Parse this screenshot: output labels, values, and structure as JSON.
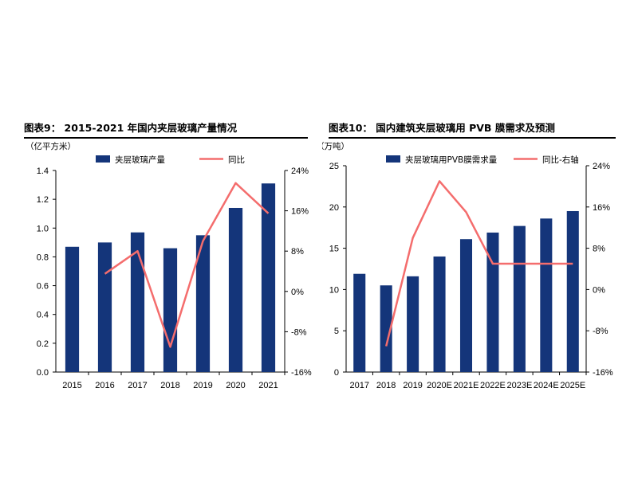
{
  "panels": [
    {
      "title": "图表9： 2015-2021 年国内夹层玻璃产量情况",
      "chart_data": {
        "type": "bar",
        "categories": [
          "2015",
          "2016",
          "2017",
          "2018",
          "2019",
          "2020",
          "2021"
        ],
        "ylabel": "（亿平方米）",
        "ylim": [
          0,
          1.4
        ],
        "yticks": [
          "0.0",
          "0.2",
          "0.4",
          "0.6",
          "0.8",
          "1.0",
          "1.2",
          "1.4"
        ],
        "y2lim": [
          -16,
          24
        ],
        "y2ticks": [
          "-16%",
          "-8%",
          "0%",
          "8%",
          "16%",
          "24%"
        ],
        "grid": false,
        "legend_position": "top",
        "series": [
          {
            "name": "夹层玻璃产量",
            "type": "bar",
            "axis": "left",
            "color": "#14357a",
            "values": [
              0.87,
              0.9,
              0.97,
              0.86,
              0.95,
              1.14,
              1.31
            ]
          },
          {
            "name": "同比",
            "type": "line",
            "axis": "right",
            "color": "#f46d6d",
            "values": [
              null,
              3.5,
              8.0,
              -11.0,
              10.0,
              21.5,
              15.5
            ]
          }
        ]
      }
    },
    {
      "title": "图表10： 国内建筑夹层玻璃用 PVB 膜需求及预测",
      "chart_data": {
        "type": "bar",
        "categories": [
          "2017",
          "2018",
          "2019",
          "2020E",
          "2021E",
          "2022E",
          "2023E",
          "2024E",
          "2025E"
        ],
        "ylabel": "（万吨）",
        "ylim": [
          0,
          25
        ],
        "yticks": [
          "0",
          "5",
          "10",
          "15",
          "20",
          "25"
        ],
        "y2lim": [
          -16,
          24
        ],
        "y2ticks": [
          "-16%",
          "-8%",
          "0%",
          "8%",
          "16%",
          "24%"
        ],
        "grid": false,
        "legend_position": "top",
        "series": [
          {
            "name": "夹层玻璃用PVB膜需求量",
            "type": "bar",
            "axis": "left",
            "color": "#14357a",
            "values": [
              11.9,
              10.5,
              11.6,
              14.0,
              16.1,
              16.9,
              17.7,
              18.6,
              19.5
            ]
          },
          {
            "name": "同比-右轴",
            "type": "line",
            "axis": "right",
            "color": "#f46d6d",
            "values": [
              null,
              -11.0,
              10.0,
              21.0,
              15.0,
              5.0,
              5.0,
              5.0,
              5.0
            ]
          }
        ]
      }
    }
  ]
}
